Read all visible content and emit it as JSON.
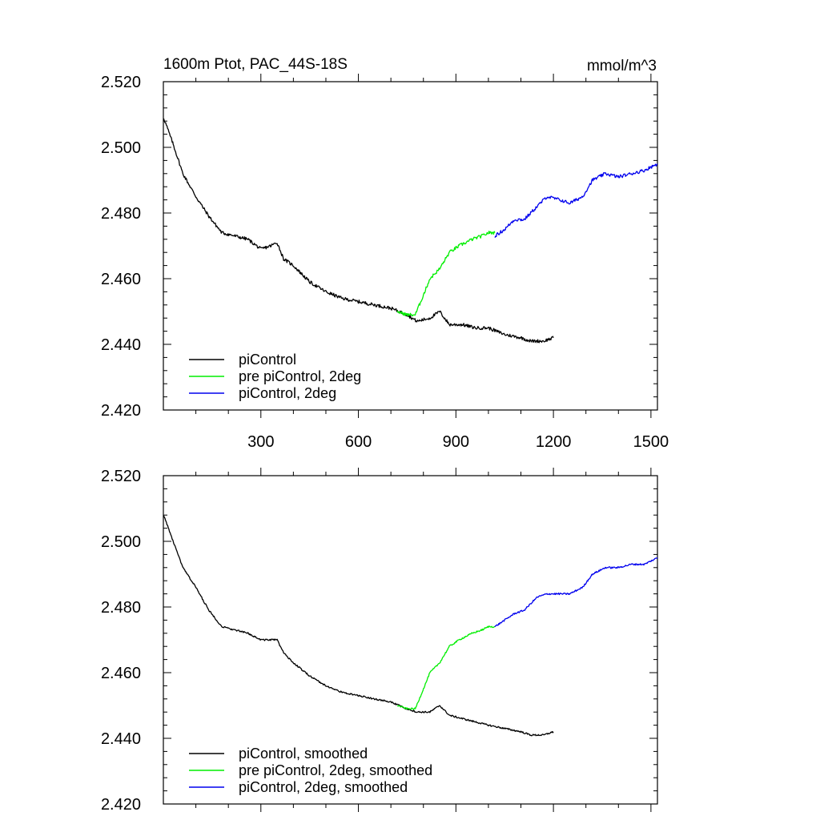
{
  "colors": {
    "picontrol": "#000000",
    "pre_2deg": "#00ee00",
    "picontrol_2deg": "#0000ee"
  },
  "chart_data": [
    {
      "type": "line",
      "title": "1600m Ptot, PAC_44S-18S",
      "units": "mmol/m^3",
      "xlim": [
        0,
        1520
      ],
      "ylim": [
        2.42,
        2.52
      ],
      "xticks": [
        300,
        600,
        900,
        1200,
        1500
      ],
      "xtick_labels": [
        "300",
        "600",
        "900",
        "1200",
        "1500"
      ],
      "yticks": [
        2.42,
        2.44,
        2.46,
        2.48,
        2.5,
        2.52
      ],
      "ytick_labels": [
        "2.420",
        "2.440",
        "2.460",
        "2.480",
        "2.500",
        "2.520"
      ],
      "legend_position": "bottom-left",
      "noise": 0.001,
      "series": [
        {
          "name": "piControl",
          "color": "#000000",
          "points": [
            [
              1,
              2.509
            ],
            [
              30,
              2.501
            ],
            [
              60,
              2.492
            ],
            [
              100,
              2.485
            ],
            [
              140,
              2.479
            ],
            [
              180,
              2.474
            ],
            [
              220,
              2.473
            ],
            [
              260,
              2.472
            ],
            [
              300,
              2.469
            ],
            [
              330,
              2.47
            ],
            [
              350,
              2.471
            ],
            [
              370,
              2.466
            ],
            [
              400,
              2.464
            ],
            [
              450,
              2.459
            ],
            [
              500,
              2.456
            ],
            [
              550,
              2.454
            ],
            [
              600,
              2.453
            ],
            [
              650,
              2.452
            ],
            [
              700,
              2.451
            ],
            [
              750,
              2.449
            ],
            [
              780,
              2.447
            ],
            [
              820,
              2.448
            ],
            [
              850,
              2.45
            ],
            [
              880,
              2.446
            ],
            [
              920,
              2.446
            ],
            [
              960,
              2.445
            ],
            [
              1000,
              2.445
            ],
            [
              1050,
              2.443
            ],
            [
              1100,
              2.442
            ],
            [
              1130,
              2.441
            ],
            [
              1150,
              2.441
            ],
            [
              1170,
              2.441
            ],
            [
              1200,
              2.442
            ]
          ]
        },
        {
          "name": "pre piControl, 2deg",
          "color": "#00ee00",
          "points": [
            [
              720,
              2.45
            ],
            [
              750,
              2.449
            ],
            [
              775,
              2.449
            ],
            [
              800,
              2.455
            ],
            [
              820,
              2.46
            ],
            [
              850,
              2.463
            ],
            [
              880,
              2.468
            ],
            [
              910,
              2.47
            ],
            [
              950,
              2.472
            ],
            [
              980,
              2.473
            ],
            [
              1000,
              2.474
            ],
            [
              1020,
              2.474
            ]
          ]
        },
        {
          "name": "piControl, 2deg",
          "color": "#0000ee",
          "points": [
            [
              1020,
              2.473
            ],
            [
              1050,
              2.475
            ],
            [
              1080,
              2.478
            ],
            [
              1110,
              2.478
            ],
            [
              1150,
              2.482
            ],
            [
              1180,
              2.485
            ],
            [
              1220,
              2.484
            ],
            [
              1250,
              2.483
            ],
            [
              1290,
              2.485
            ],
            [
              1320,
              2.49
            ],
            [
              1360,
              2.492
            ],
            [
              1400,
              2.491
            ],
            [
              1440,
              2.492
            ],
            [
              1480,
              2.493
            ],
            [
              1500,
              2.494
            ],
            [
              1520,
              2.495
            ]
          ]
        }
      ]
    },
    {
      "type": "line",
      "title": "",
      "units": "",
      "xlim": [
        0,
        1520
      ],
      "ylim": [
        2.42,
        2.52
      ],
      "xticks": [
        300,
        600,
        900,
        1200,
        1500
      ],
      "xtick_labels": [],
      "yticks": [
        2.42,
        2.44,
        2.46,
        2.48,
        2.5,
        2.52
      ],
      "ytick_labels": [
        "2.420",
        "2.440",
        "2.460",
        "2.480",
        "2.500",
        "2.520"
      ],
      "legend_position": "bottom-left",
      "noise": 0.0005,
      "series": [
        {
          "name": "piControl, smoothed",
          "color": "#000000",
          "points": [
            [
              1,
              2.508
            ],
            [
              30,
              2.5
            ],
            [
              60,
              2.492
            ],
            [
              100,
              2.486
            ],
            [
              140,
              2.479
            ],
            [
              180,
              2.474
            ],
            [
              220,
              2.473
            ],
            [
              260,
              2.472
            ],
            [
              300,
              2.47
            ],
            [
              330,
              2.47
            ],
            [
              350,
              2.47
            ],
            [
              370,
              2.466
            ],
            [
              400,
              2.463
            ],
            [
              450,
              2.459
            ],
            [
              500,
              2.456
            ],
            [
              550,
              2.454
            ],
            [
              600,
              2.453
            ],
            [
              650,
              2.452
            ],
            [
              700,
              2.451
            ],
            [
              750,
              2.449
            ],
            [
              780,
              2.448
            ],
            [
              820,
              2.448
            ],
            [
              850,
              2.45
            ],
            [
              880,
              2.447
            ],
            [
              920,
              2.446
            ],
            [
              960,
              2.445
            ],
            [
              1000,
              2.444
            ],
            [
              1050,
              2.443
            ],
            [
              1100,
              2.442
            ],
            [
              1130,
              2.441
            ],
            [
              1150,
              2.441
            ],
            [
              1170,
              2.441
            ],
            [
              1200,
              2.442
            ]
          ]
        },
        {
          "name": "pre piControl, 2deg, smoothed",
          "color": "#00ee00",
          "points": [
            [
              720,
              2.45
            ],
            [
              750,
              2.449
            ],
            [
              775,
              2.449
            ],
            [
              800,
              2.455
            ],
            [
              820,
              2.46
            ],
            [
              850,
              2.463
            ],
            [
              880,
              2.468
            ],
            [
              910,
              2.47
            ],
            [
              950,
              2.472
            ],
            [
              980,
              2.473
            ],
            [
              1000,
              2.474
            ],
            [
              1020,
              2.474
            ]
          ]
        },
        {
          "name": "piControl, 2deg, smoothed",
          "color": "#0000ee",
          "points": [
            [
              1020,
              2.474
            ],
            [
              1050,
              2.476
            ],
            [
              1080,
              2.478
            ],
            [
              1110,
              2.479
            ],
            [
              1150,
              2.483
            ],
            [
              1180,
              2.484
            ],
            [
              1220,
              2.484
            ],
            [
              1250,
              2.484
            ],
            [
              1290,
              2.486
            ],
            [
              1320,
              2.49
            ],
            [
              1360,
              2.492
            ],
            [
              1400,
              2.492
            ],
            [
              1440,
              2.493
            ],
            [
              1480,
              2.493
            ],
            [
              1500,
              2.494
            ],
            [
              1520,
              2.495
            ]
          ]
        }
      ]
    }
  ]
}
